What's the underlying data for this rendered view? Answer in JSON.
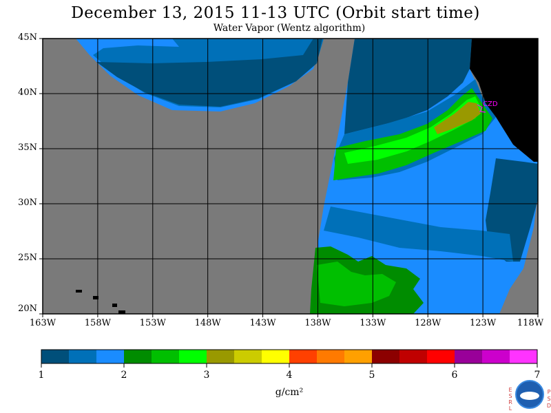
{
  "title": "December 13, 2015   11-13 UTC   (Orbit start time)",
  "subtitle": "Water Vapor (Wentz algorithm)",
  "map": {
    "lat_labels": [
      "45N",
      "40N",
      "35N",
      "30N",
      "25N",
      "20N"
    ],
    "lon_labels": [
      "163W",
      "158W",
      "153W",
      "148W",
      "143W",
      "138W",
      "133W",
      "128W",
      "123W",
      "118W"
    ],
    "lat_range": [
      20,
      45
    ],
    "lon_range": [
      -163,
      -118
    ],
    "grid": true,
    "colors": {
      "no_data": "#7a7a7a",
      "land": "#000000",
      "grid_lines": "#000000"
    },
    "station": {
      "label": "CZD",
      "color": "#ff00ff"
    }
  },
  "colorbar": {
    "ticks": [
      "1",
      "2",
      "3",
      "4",
      "5",
      "6",
      "7"
    ],
    "units": "g/cm²",
    "range": [
      1,
      7
    ],
    "colors": [
      "#004f7a",
      "#0070b8",
      "#1a8cff",
      "#008c00",
      "#00bf00",
      "#00ff00",
      "#999900",
      "#cccc00",
      "#ffff00",
      "#ff4000",
      "#ff7a00",
      "#ffa000",
      "#8c0000",
      "#c00000",
      "#ff0000",
      "#990099",
      "#cc00cc",
      "#ff33ff"
    ]
  },
  "logo": {
    "left_letters": [
      "E",
      "S",
      "R",
      "L"
    ],
    "right_letters": [
      "P",
      "S",
      "D"
    ],
    "emblem": "NOAA"
  }
}
